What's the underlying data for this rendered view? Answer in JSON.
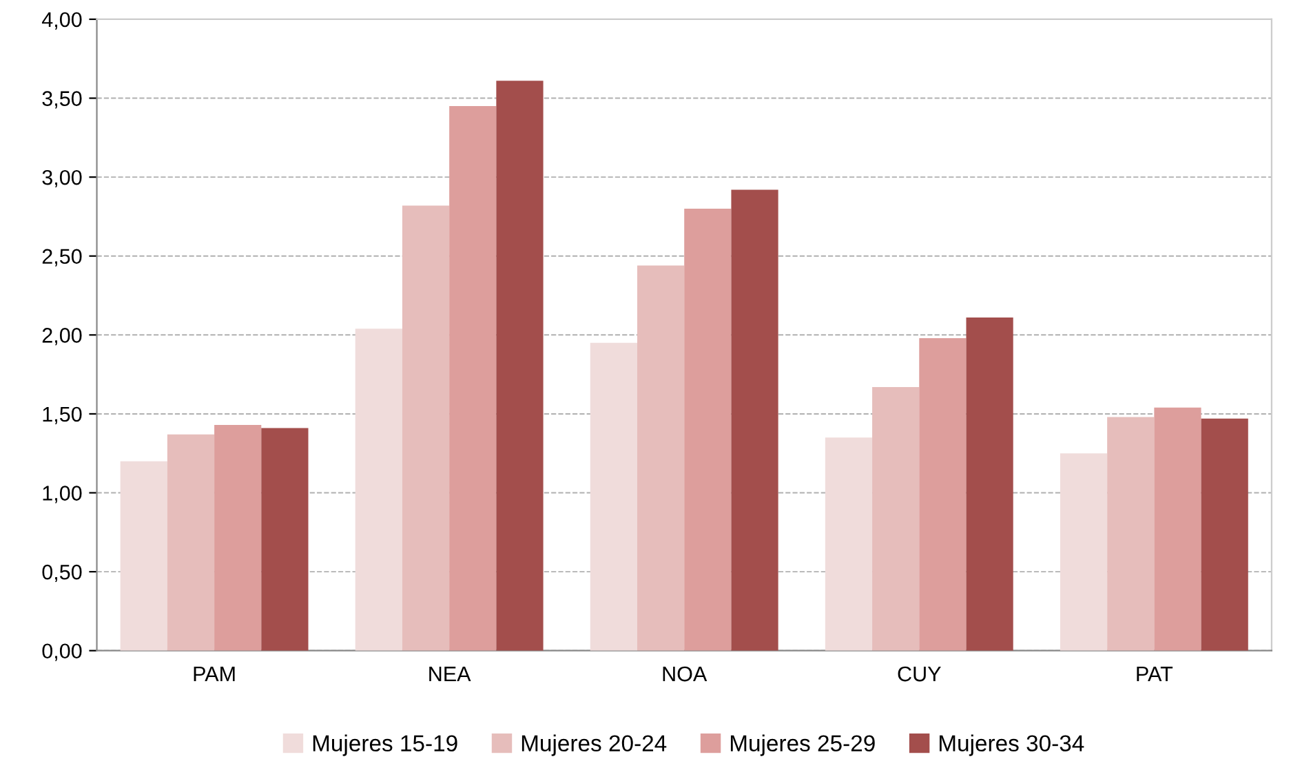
{
  "chart_data": {
    "type": "bar",
    "categories": [
      "PAM",
      "NEA",
      "NOA",
      "CUY",
      "PAT"
    ],
    "series": [
      {
        "name": "Mujeres 15-19",
        "color": "#f0dcdb",
        "values": [
          1.2,
          2.04,
          1.95,
          1.35,
          1.25
        ]
      },
      {
        "name": "Mujeres 20-24",
        "color": "#e6bdbb",
        "values": [
          1.37,
          2.82,
          2.44,
          1.67,
          1.48
        ]
      },
      {
        "name": "Mujeres 25-29",
        "color": "#dd9e9c",
        "values": [
          1.43,
          3.45,
          2.8,
          1.98,
          1.54
        ]
      },
      {
        "name": "Mujeres 30-34",
        "color": "#a34e4c",
        "values": [
          1.41,
          3.61,
          2.92,
          2.11,
          1.47
        ]
      }
    ],
    "ylim": [
      0,
      4
    ],
    "yticks": [
      {
        "value": 0,
        "label": "0,00"
      },
      {
        "value": 0.5,
        "label": "0,50"
      },
      {
        "value": 1,
        "label": "1,00"
      },
      {
        "value": 1.5,
        "label": "1,50"
      },
      {
        "value": 2,
        "label": "2,00"
      },
      {
        "value": 2.5,
        "label": "2,50"
      },
      {
        "value": 3,
        "label": "3,00"
      },
      {
        "value": 3.5,
        "label": "3,50"
      },
      {
        "value": 4,
        "label": "4,00"
      }
    ],
    "grid": "y",
    "legend": "bottom"
  }
}
